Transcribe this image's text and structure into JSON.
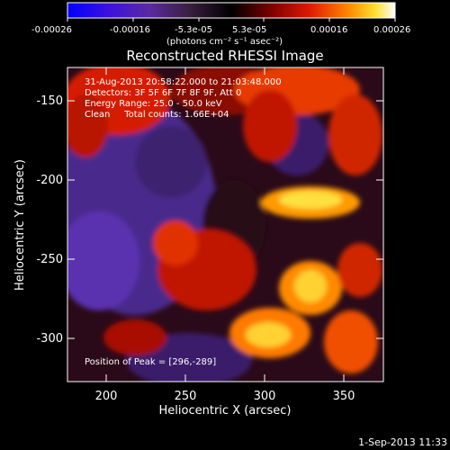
{
  "colorbar": {
    "tick_labels": [
      "-0.00026",
      "-0.00016",
      "-5.3e-05",
      "5.3e-05",
      "0.00016",
      "0.00026"
    ],
    "unit_label": "(photons cm⁻² s⁻¹ asec⁻²)"
  },
  "title": "Reconstructed RHESSI Image",
  "info": {
    "time_range": "31-Aug-2013 20:58:22.000 to 21:03:48.000",
    "detectors": "Detectors: 3F 5F 6F 7F 8F 9F, Att 0",
    "energy_range": "Energy Range: 25.0 - 50.0 keV",
    "method_counts": "Clean     Total counts: 1.66E+04",
    "peak": "Position of Peak = [296,-289]"
  },
  "axes": {
    "xlabel": "Heliocentric X (arcsec)",
    "ylabel": "Heliocentric Y (arcsec)",
    "x_ticks": [
      "200",
      "250",
      "300",
      "350"
    ],
    "y_ticks": [
      "-150",
      "-200",
      "-250",
      "-300"
    ],
    "x_range": [
      178,
      372
    ],
    "y_range": [
      -322,
      -128
    ]
  },
  "footer": {
    "timestamp": "1-Sep-2013 11:33"
  }
}
